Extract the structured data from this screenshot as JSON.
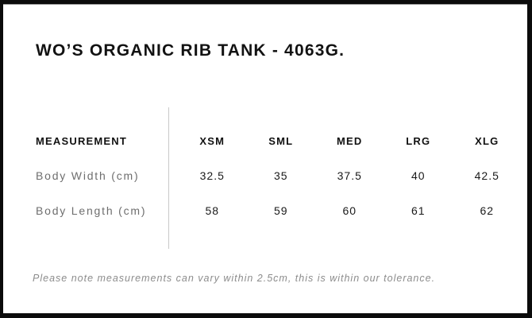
{
  "page": {
    "title": "WO’S ORGANIC RIB TANK - 4063G."
  },
  "table": {
    "header_label": "MEASUREMENT",
    "size_headers": [
      "XSM",
      "SML",
      "MED",
      "LRG",
      "XLG"
    ],
    "rows": [
      {
        "label": "Body Width (cm)",
        "values": [
          "32.5",
          "35",
          "37.5",
          "40",
          "42.5"
        ]
      },
      {
        "label": "Body Length (cm)",
        "values": [
          "58",
          "59",
          "60",
          "61",
          "62"
        ]
      }
    ]
  },
  "footer": {
    "note": "Please note measurements can vary within 2.5cm, this is within our tolerance."
  },
  "colors": {
    "frame": "#0b0b0b",
    "title_text": "#121212",
    "header_text": "#111111",
    "row_label_text": "#6e6e6e",
    "value_text": "#1a1a1a",
    "divider": "#c9c9c9",
    "note_text": "#8c8c8c",
    "background": "#ffffff"
  }
}
